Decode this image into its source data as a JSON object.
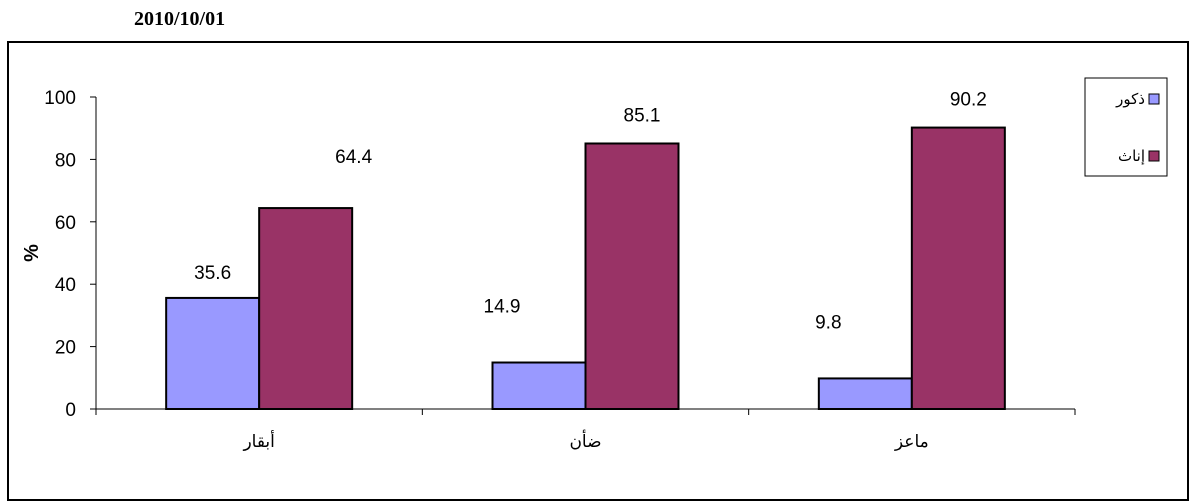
{
  "header": {
    "date": "2010/10/01"
  },
  "chart_data": {
    "type": "bar",
    "categories": [
      "أبقار",
      "ضأن",
      "ماعز"
    ],
    "series": [
      {
        "name": "ذكور",
        "values": [
          35.6,
          14.9,
          9.8
        ],
        "color": "#9999ff"
      },
      {
        "name": "إناث",
        "values": [
          64.4,
          85.1,
          90.2
        ],
        "color": "#993366"
      }
    ],
    "data_labels": [
      [
        "35.6",
        "14.9",
        "9.8"
      ],
      [
        "64.4",
        "85.1",
        "90.2"
      ]
    ],
    "title": "",
    "xlabel": "",
    "ylabel": "%",
    "ylim": [
      0,
      100
    ],
    "yticks": [
      0,
      20,
      40,
      60,
      80,
      100
    ],
    "ytick_labels": [
      "0",
      "20",
      "40",
      "60",
      "80",
      "100"
    ],
    "grid": false,
    "legend_position": "top-right"
  }
}
